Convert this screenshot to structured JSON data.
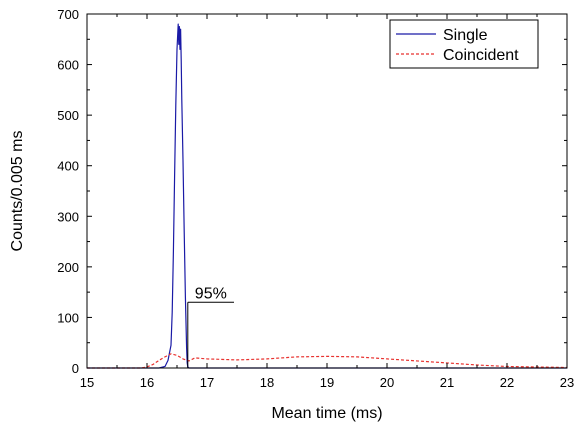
{
  "chart_data": {
    "type": "line",
    "title": "",
    "xlabel": "Mean time (ms)",
    "ylabel": "Counts/0.005 ms",
    "xlim": [
      15,
      23
    ],
    "ylim": [
      0,
      700
    ],
    "xticks": [
      15,
      16,
      17,
      18,
      19,
      20,
      21,
      22,
      23
    ],
    "yticks": [
      0,
      100,
      200,
      300,
      400,
      500,
      600,
      700
    ],
    "grid": false,
    "legend": {
      "position": "top-right",
      "frame": true
    },
    "annotation": {
      "text": "95%",
      "x": 16.68,
      "y": 130
    },
    "series": [
      {
        "name": "Single",
        "color": "#1a1aa6",
        "style": "solid",
        "x": [
          15.0,
          16.2,
          16.3,
          16.35,
          16.4,
          16.42,
          16.44,
          16.46,
          16.48,
          16.5,
          16.52,
          16.53,
          16.54,
          16.55,
          16.56,
          16.57,
          16.58,
          16.6,
          16.62,
          16.64,
          16.66,
          16.67,
          16.68,
          16.7,
          16.8,
          23.0
        ],
        "y": [
          0,
          0,
          3,
          15,
          45,
          110,
          230,
          380,
          520,
          630,
          680,
          640,
          675,
          630,
          670,
          610,
          530,
          410,
          270,
          140,
          40,
          10,
          2,
          0,
          0,
          0
        ]
      },
      {
        "name": "Coincident",
        "color": "#e8322f",
        "style": "dashed",
        "x": [
          15.0,
          15.9,
          16.0,
          16.1,
          16.2,
          16.3,
          16.4,
          16.5,
          16.6,
          16.7,
          16.8,
          17.0,
          17.5,
          18.0,
          18.5,
          19.0,
          19.5,
          20.0,
          20.5,
          21.0,
          21.5,
          22.0,
          22.5,
          23.0
        ],
        "y": [
          0,
          0,
          2,
          7,
          15,
          22,
          28,
          25,
          18,
          14,
          20,
          18,
          16,
          18,
          22,
          23,
          22,
          18,
          14,
          10,
          6,
          3,
          2,
          1
        ]
      }
    ]
  }
}
